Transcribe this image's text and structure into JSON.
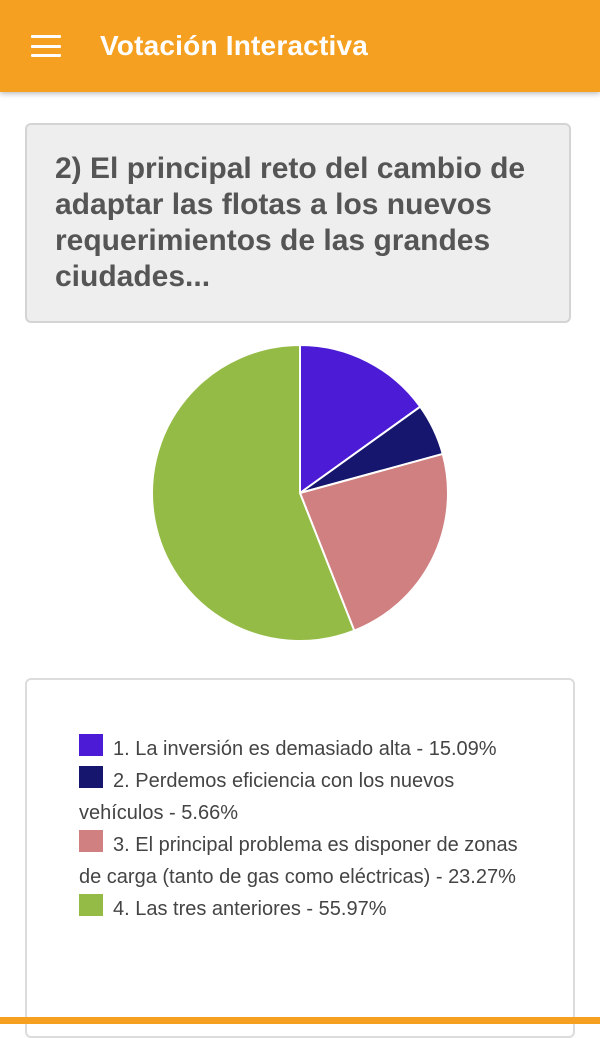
{
  "app_bar": {
    "title": "Votación Interactiva",
    "menu_icon": "hamburger-menu-icon",
    "color": "#f5a021"
  },
  "question": {
    "text": "2) El principal reto del cambio de adaptar las flotas a los nuevos requerimientos de las grandes ciudades..."
  },
  "chart_data": {
    "type": "pie",
    "categories": [
      "1. La inversión es demasiado alta",
      "2. Perdemos eficiencia con los nuevos vehículos",
      "3. El principal problema es disponer de zonas de carga (tanto de gas como eléctricas)",
      "4. Las tres anteriores"
    ],
    "values": [
      15.09,
      5.66,
      23.27,
      55.97
    ],
    "colors": [
      "#4b1bd6",
      "#16166e",
      "#d08080",
      "#94bb45"
    ],
    "legend": [
      "1. La inversión es demasiado alta - 15.09%",
      "2. Perdemos eficiencia con los nuevos vehículos - 5.66%",
      "3. El principal problema es disponer de zonas de carga (tanto de gas como eléctricas) - 23.27%",
      "4. Las tres anteriores - 55.97%"
    ],
    "legend_placement": "bottom"
  }
}
